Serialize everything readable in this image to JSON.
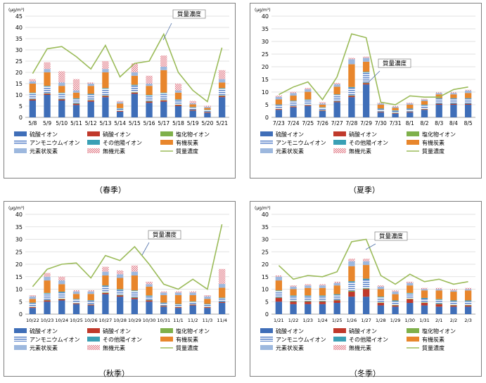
{
  "chart_data": [
    {
      "type": "bar",
      "stacked": true,
      "caption": "（春季）",
      "yunit": "(μg/m³)",
      "ylim": [
        0,
        45
      ],
      "yticks": [
        0,
        5,
        10,
        15,
        20,
        25,
        30,
        35,
        40,
        45
      ],
      "callout": "質量濃度",
      "categories": [
        "5/8",
        "5/9",
        "5/10",
        "5/11",
        "5/12",
        "5/13",
        "5/14",
        "5/15",
        "5/16",
        "5/17",
        "5/18",
        "5/19",
        "5/20",
        "5/21"
      ],
      "series": [
        {
          "name": "硫酸イオン",
          "values": [
            7.5,
            10,
            7.5,
            5.5,
            7,
            9,
            2.5,
            10.5,
            6.5,
            7,
            5,
            3,
            2,
            9
          ]
        },
        {
          "name": "硝酸イオン",
          "values": [
            0.5,
            0.5,
            0.5,
            0.5,
            0.5,
            0.5,
            0.3,
            0.5,
            0.5,
            0.5,
            0.5,
            0.3,
            0.3,
            0.5
          ]
        },
        {
          "name": "塩化物イオン",
          "values": [
            0.2,
            0.2,
            0.2,
            0.2,
            0.2,
            0.2,
            0.1,
            0.2,
            0.2,
            0.2,
            0.2,
            0.1,
            0.1,
            0.2
          ]
        },
        {
          "name": "アンモニウムイオン",
          "values": [
            2.5,
            3,
            2.5,
            2,
            2.5,
            3,
            1,
            3,
            2.5,
            3,
            2,
            1,
            0.8,
            3
          ]
        },
        {
          "name": "その他陽イオン",
          "values": [
            0.3,
            0.3,
            0.3,
            0.3,
            0.3,
            0.3,
            0.2,
            0.3,
            0.3,
            0.3,
            0.3,
            0.2,
            0.2,
            0.3
          ]
        },
        {
          "name": "有機炭素",
          "values": [
            4,
            6,
            3,
            2.5,
            3.5,
            7,
            2,
            4,
            4,
            10,
            3,
            1.2,
            0.8,
            2.5
          ]
        },
        {
          "name": "元素状炭素",
          "values": [
            1,
            1.5,
            1.5,
            1,
            1,
            1.5,
            0.7,
            1.5,
            1,
            1.5,
            1,
            0.5,
            0.5,
            1.5
          ]
        },
        {
          "name": "無機元素",
          "values": [
            1,
            3,
            5,
            5,
            0.5,
            3.5,
            0.5,
            4,
            3.5,
            5,
            3,
            1,
            0.5,
            4
          ]
        },
        {
          "name": "質量濃度",
          "type": "line",
          "values": [
            19.5,
            30.5,
            31.5,
            27,
            21.5,
            32,
            18,
            24,
            25,
            37,
            20,
            12,
            7,
            31
          ]
        }
      ]
    },
    {
      "type": "bar",
      "stacked": true,
      "caption": "（夏季）",
      "yunit": "(μg/m³)",
      "ylim": [
        0,
        40
      ],
      "yticks": [
        0,
        5,
        10,
        15,
        20,
        25,
        30,
        35,
        40
      ],
      "callout": "質量濃度",
      "categories": [
        "7/23",
        "7/24",
        "7/25",
        "7/26",
        "7/27",
        "7/28",
        "7/29",
        "7/30",
        "7/31",
        "8/1",
        "8/2",
        "8/3",
        "8/4",
        "8/5"
      ],
      "series": [
        {
          "name": "硫酸イオン",
          "values": [
            3,
            4,
            4.5,
            2.5,
            6,
            8,
            13,
            2,
            1.5,
            2,
            3,
            5,
            5,
            5
          ]
        },
        {
          "name": "硝酸イオン",
          "values": [
            0.3,
            0.3,
            0.3,
            0.2,
            0.3,
            0.5,
            0.5,
            0.2,
            0.2,
            0.2,
            0.2,
            0.3,
            0.3,
            0.3
          ]
        },
        {
          "name": "塩化物イオン",
          "values": [
            0.1,
            0.1,
            0.1,
            0.1,
            0.1,
            0.2,
            0.2,
            0.1,
            0.1,
            0.1,
            0.1,
            0.1,
            0.1,
            0.1
          ]
        },
        {
          "name": "アンモニウムイオン",
          "values": [
            1.5,
            2,
            2,
            1,
            2.5,
            3,
            4,
            1,
            0.8,
            1,
            1.5,
            2,
            2,
            2
          ]
        },
        {
          "name": "その他陽イオン",
          "values": [
            0.2,
            0.2,
            0.2,
            0.2,
            0.2,
            0.3,
            0.3,
            0.2,
            0.2,
            0.2,
            0.2,
            0.2,
            0.2,
            0.2
          ]
        },
        {
          "name": "有機炭素",
          "values": [
            2,
            2,
            3,
            1,
            3,
            9,
            4,
            1.5,
            1,
            1.5,
            1.5,
            1.5,
            1.5,
            2
          ]
        },
        {
          "name": "元素状炭素",
          "values": [
            1,
            1,
            1,
            0.5,
            1,
            2,
            1.5,
            0.5,
            0.4,
            0.5,
            0.5,
            0.5,
            0.5,
            1
          ]
        },
        {
          "name": "無機元素",
          "values": [
            0.5,
            0.5,
            0.5,
            0.5,
            0.5,
            0.5,
            0.5,
            0.3,
            0.3,
            0.3,
            0.3,
            0.3,
            0.3,
            0.3
          ]
        },
        {
          "name": "質量濃度",
          "type": "line",
          "values": [
            9,
            12,
            14,
            7,
            16,
            33,
            31.5,
            6,
            5,
            8.5,
            8,
            8,
            11,
            12
          ]
        }
      ]
    },
    {
      "type": "bar",
      "stacked": true,
      "caption": "（秋季）",
      "yunit": "(μg/m³)",
      "ylim": [
        0,
        40
      ],
      "yticks": [
        0,
        5,
        10,
        15,
        20,
        25,
        30,
        35,
        40
      ],
      "callout": "質量濃度",
      "categories": [
        "10/22",
        "10/23",
        "10/24",
        "10/25",
        "10/26",
        "10/27",
        "10/28",
        "10/29",
        "10/30",
        "10/31",
        "11/1",
        "11/2",
        "11/3",
        "11/4"
      ],
      "series": [
        {
          "name": "硫酸イオン",
          "values": [
            2.5,
            5,
            5.5,
            4,
            3.5,
            8,
            7,
            6,
            5,
            3,
            2.5,
            3.5,
            2.5,
            4.5
          ]
        },
        {
          "name": "硝酸イオン",
          "values": [
            0.3,
            0.5,
            0.5,
            0.3,
            0.3,
            0.5,
            0.5,
            0.5,
            0.5,
            0.3,
            0.3,
            0.3,
            0.3,
            0.3
          ]
        },
        {
          "name": "塩化物イオン",
          "values": [
            0.1,
            0.2,
            0.2,
            0.1,
            0.1,
            0.2,
            0.2,
            0.2,
            0.2,
            0.1,
            0.1,
            0.1,
            0.1,
            0.1
          ]
        },
        {
          "name": "アンモニウムイオン",
          "values": [
            1.5,
            2.5,
            2.5,
            1.5,
            1.5,
            2.5,
            2,
            2.5,
            1.5,
            1,
            1,
            1,
            1,
            1.5
          ]
        },
        {
          "name": "その他陽イオン",
          "values": [
            0.2,
            0.3,
            0.3,
            0.2,
            0.2,
            0.3,
            0.3,
            0.3,
            0.3,
            0.2,
            0.2,
            0.2,
            0.2,
            0.2
          ]
        },
        {
          "name": "有機炭素",
          "values": [
            1.5,
            5,
            3,
            2,
            2.5,
            4,
            4.5,
            6,
            3.5,
            3,
            3.5,
            2.5,
            2,
            4
          ]
        },
        {
          "name": "元素状炭素",
          "values": [
            1,
            1.5,
            1.5,
            1,
            1,
            1.5,
            1.5,
            1.5,
            1,
            1,
            1,
            1,
            1,
            1.5
          ]
        },
        {
          "name": "無機元素",
          "values": [
            0.5,
            1.5,
            1.5,
            0.5,
            0.5,
            2,
            1.5,
            2.5,
            1,
            0.5,
            0.5,
            0.5,
            0.5,
            6
          ]
        },
        {
          "name": "質量濃度",
          "type": "line",
          "values": [
            11,
            18,
            20,
            20.5,
            14.5,
            23.5,
            21.5,
            27,
            20,
            12,
            10,
            14,
            10,
            36
          ]
        }
      ]
    },
    {
      "type": "bar",
      "stacked": true,
      "caption": "（冬季）",
      "yunit": "(μg/m³)",
      "ylim": [
        0,
        40
      ],
      "yticks": [
        0,
        5,
        10,
        15,
        20,
        25,
        30,
        35,
        40
      ],
      "callout": "質量濃度",
      "categories": [
        "1/21",
        "1/22",
        "1/23",
        "1/24",
        "1/25",
        "1/26",
        "1/27",
        "1/28",
        "1/29",
        "1/30",
        "1/31",
        "2/1",
        "2/2",
        "2/3"
      ],
      "series": [
        {
          "name": "硫酸イオン",
          "values": [
            5,
            4,
            4,
            4,
            4.5,
            7,
            7,
            3.5,
            3,
            4.5,
            3.5,
            3,
            3,
            3
          ]
        },
        {
          "name": "硝酸イオン",
          "values": [
            1.5,
            1,
            1,
            1,
            1,
            2,
            3,
            1,
            0.5,
            1.5,
            1,
            1,
            0.5,
            0.5
          ]
        },
        {
          "name": "塩化物イオン",
          "values": [
            0.2,
            0.2,
            0.2,
            0.2,
            0.2,
            0.3,
            0.3,
            0.2,
            0.2,
            0.2,
            0.2,
            0.2,
            0.2,
            0.2
          ]
        },
        {
          "name": "アンモニウムイオン",
          "values": [
            2.5,
            2,
            2,
            2,
            2,
            3.5,
            3.5,
            2,
            1.5,
            2,
            1.5,
            1.5,
            1.5,
            1.5
          ]
        },
        {
          "name": "その他陽イオン",
          "values": [
            0.3,
            0.3,
            0.3,
            0.3,
            0.3,
            0.4,
            0.4,
            0.3,
            0.3,
            0.3,
            0.3,
            0.3,
            0.3,
            0.3
          ]
        },
        {
          "name": "有機炭素",
          "values": [
            4,
            2.5,
            3,
            3,
            3.5,
            6,
            5.5,
            3,
            2.5,
            3,
            3,
            3.5,
            3.5,
            4
          ]
        },
        {
          "name": "元素状炭素",
          "values": [
            1.5,
            1,
            1,
            1,
            1,
            2,
            1.5,
            1,
            1,
            1,
            0.5,
            0.5,
            0.5,
            0.5
          ]
        },
        {
          "name": "無機元素",
          "values": [
            0.5,
            0.5,
            0.5,
            0.5,
            0.5,
            1,
            1,
            0.5,
            0.5,
            0.5,
            0.5,
            0.5,
            0.5,
            0.5
          ]
        },
        {
          "name": "質量濃度",
          "type": "line",
          "values": [
            19.5,
            14,
            15.5,
            15,
            17,
            29,
            30,
            15.5,
            12,
            16,
            13,
            14,
            12,
            13
          ]
        }
      ]
    }
  ],
  "legend": [
    {
      "label": "硫酸イオン",
      "kind": "bar",
      "color": "#3f6eb8"
    },
    {
      "label": "硝酸イオン",
      "kind": "bar",
      "color": "#c0392b"
    },
    {
      "label": "塩化物イオン",
      "kind": "bar",
      "color": "#7fb04a"
    },
    {
      "label": "アンモニウムイオン",
      "kind": "bar",
      "color": "#6c8fd0",
      "pattern": "stripe"
    },
    {
      "label": "その他陽イオン",
      "kind": "bar",
      "color": "#3aa0b5"
    },
    {
      "label": "有機炭素",
      "kind": "bar",
      "color": "#e8862c"
    },
    {
      "label": "元素状炭素",
      "kind": "bar",
      "color": "#9db8de"
    },
    {
      "label": "無機元素",
      "kind": "bar",
      "color": "#eaaab0",
      "pattern": "dots"
    },
    {
      "label": "質量濃度",
      "kind": "line",
      "color": "#9bbb59"
    }
  ]
}
